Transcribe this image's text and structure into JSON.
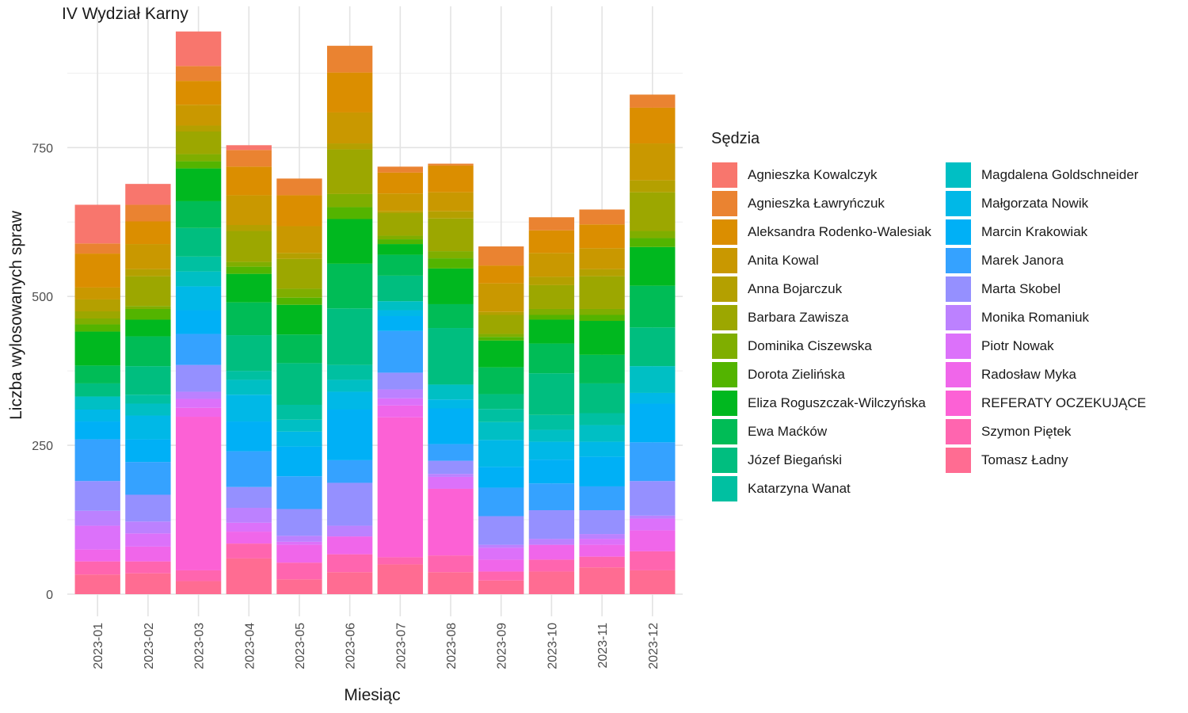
{
  "chart_data": {
    "type": "bar",
    "stacked": true,
    "title": "IV Wydział Karny",
    "xlabel": "Miesiąc",
    "ylabel": "Liczba wylosowanych spraw",
    "ylim": [
      0,
      940
    ],
    "yticks": [
      0,
      250,
      500,
      750
    ],
    "grid": true,
    "legend_position": "right",
    "legend_title": "Sędzia",
    "categories": [
      "2023-01",
      "2023-02",
      "2023-03",
      "2023-04",
      "2023-05",
      "2023-06",
      "2023-07",
      "2023-08",
      "2023-09",
      "2023-10",
      "2023-11",
      "2023-12"
    ],
    "series": [
      {
        "name": "Agnieszka Kowalczyk",
        "color": "#F8766D",
        "values": [
          65,
          35,
          58,
          8,
          0,
          0,
          0,
          0,
          0,
          0,
          0,
          0
        ]
      },
      {
        "name": "Agnieszka Ławryńczuk",
        "color": "#EA8331",
        "values": [
          17,
          28,
          25,
          28,
          28,
          45,
          10,
          3,
          32,
          22,
          25,
          22
        ]
      },
      {
        "name": "Aleksandra Rodenko-Walesiak",
        "color": "#DB8E00",
        "values": [
          57,
          38,
          40,
          48,
          52,
          67,
          35,
          45,
          30,
          38,
          40,
          60
        ]
      },
      {
        "name": "Anita Kowal",
        "color": "#C99800",
        "values": [
          20,
          42,
          35,
          50,
          45,
          52,
          30,
          32,
          48,
          40,
          35,
          62
        ]
      },
      {
        "name": "Anna Bojarczuk",
        "color": "#B4A000",
        "values": [
          20,
          12,
          10,
          10,
          10,
          10,
          3,
          12,
          5,
          14,
          12,
          20
        ]
      },
      {
        "name": "Barbara Zawisza",
        "color": "#9CA700",
        "values": [
          12,
          50,
          38,
          52,
          50,
          75,
          38,
          55,
          32,
          40,
          55,
          65
        ]
      },
      {
        "name": "Dominika Ciszewska",
        "color": "#7FAE00",
        "values": [
          10,
          5,
          12,
          8,
          15,
          22,
          6,
          12,
          5,
          10,
          10,
          12
        ]
      },
      {
        "name": "Dorota Zielińska",
        "color": "#53B400",
        "values": [
          12,
          18,
          12,
          12,
          12,
          20,
          8,
          17,
          6,
          8,
          10,
          15
        ]
      },
      {
        "name": "Eliza Roguszczak-Wilczyńska",
        "color": "#00B81F",
        "values": [
          57,
          28,
          55,
          48,
          50,
          75,
          18,
          60,
          45,
          40,
          57,
          65
        ]
      },
      {
        "name": "Ewa Maćków",
        "color": "#00BC56",
        "values": [
          30,
          50,
          45,
          55,
          48,
          75,
          35,
          40,
          45,
          50,
          48,
          70
        ]
      },
      {
        "name": "Józef Biegański",
        "color": "#00BE7F",
        "values": [
          22,
          48,
          48,
          60,
          70,
          95,
          43,
          95,
          25,
          70,
          50,
          65
        ]
      },
      {
        "name": "Katarzyna Wanat",
        "color": "#00C0A1",
        "values": [
          0,
          15,
          25,
          15,
          25,
          25,
          0,
          0,
          22,
          25,
          20,
          0
        ]
      },
      {
        "name": "Magdalena Goldschneider",
        "color": "#00BFC4",
        "values": [
          22,
          20,
          25,
          25,
          20,
          20,
          15,
          25,
          30,
          20,
          28,
          45
        ]
      },
      {
        "name": "Małgorzata Nowik",
        "color": "#00B8E7",
        "values": [
          20,
          40,
          40,
          45,
          25,
          30,
          10,
          15,
          45,
          30,
          25,
          18
        ]
      },
      {
        "name": "Marcin Krakowiak",
        "color": "#00B0F6",
        "values": [
          30,
          38,
          40,
          50,
          50,
          85,
          25,
          60,
          35,
          40,
          50,
          65
        ]
      },
      {
        "name": "Marek Janora",
        "color": "#35A2FF",
        "values": [
          70,
          55,
          52,
          60,
          55,
          38,
          70,
          28,
          48,
          45,
          40,
          65
        ]
      },
      {
        "name": "Marta Skobel",
        "color": "#9590FF",
        "values": [
          50,
          45,
          45,
          35,
          45,
          72,
          28,
          22,
          48,
          48,
          40,
          58
        ]
      },
      {
        "name": "Monika Romaniuk",
        "color": "#BC81FF",
        "values": [
          25,
          20,
          12,
          25,
          10,
          18,
          15,
          5,
          5,
          10,
          8,
          5
        ]
      },
      {
        "name": "Piotr Nowak",
        "color": "#DC71FA",
        "values": [
          40,
          22,
          15,
          15,
          5,
          0,
          12,
          20,
          20,
          0,
          10,
          20
        ]
      },
      {
        "name": "Radosław Myka",
        "color": "#F066EA",
        "values": [
          20,
          25,
          15,
          20,
          30,
          30,
          20,
          0,
          20,
          25,
          20,
          35
        ]
      },
      {
        "name": "REFERATY OCZEKUJĄCE",
        "color": "#FC61D5",
        "values": [
          0,
          0,
          258,
          0,
          0,
          0,
          235,
          112,
          0,
          0,
          0,
          0
        ]
      },
      {
        "name": "Szymon Piętek",
        "color": "#FF65AF",
        "values": [
          22,
          20,
          18,
          25,
          28,
          30,
          12,
          28,
          15,
          20,
          18,
          32
        ]
      },
      {
        "name": "Tomasz Ładny",
        "color": "#FF6C92",
        "values": [
          33,
          35,
          22,
          60,
          25,
          37,
          50,
          37,
          23,
          38,
          45,
          40
        ]
      }
    ]
  }
}
